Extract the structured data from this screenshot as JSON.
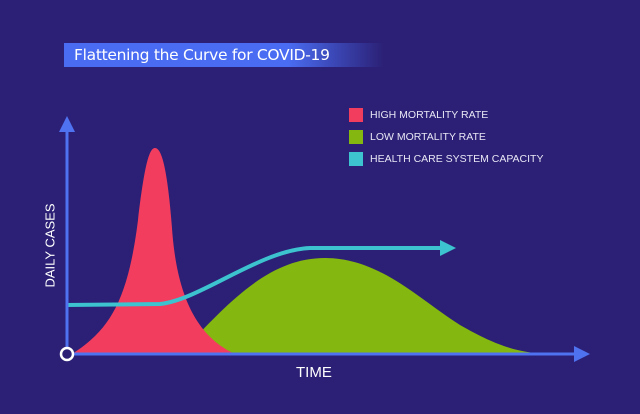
{
  "title": "Flattening the Curve for COVID-19",
  "legend": [
    {
      "label": "HIGH MORTALITY RATE",
      "color": "#f23d5f"
    },
    {
      "label": "LOW MORTALITY RATE",
      "color": "#84b70f"
    },
    {
      "label": "HEALTH CARE SYSTEM CAPACITY",
      "color": "#3cc3cf"
    }
  ],
  "axes": {
    "y_label": "DAILY CASES",
    "x_label": "TIME",
    "color": "#4f72f0"
  },
  "background": "#2b2075"
}
